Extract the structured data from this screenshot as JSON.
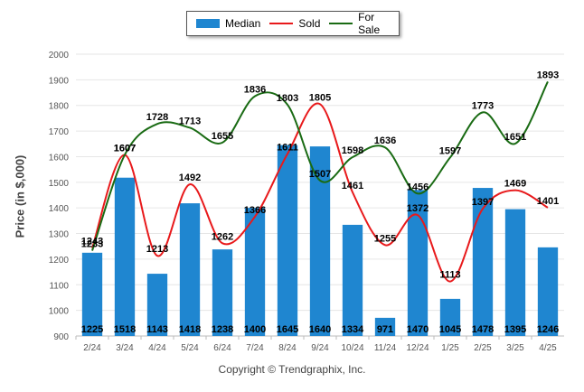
{
  "chart_data": {
    "type": "bar",
    "categories": [
      "2/24",
      "3/24",
      "4/24",
      "5/24",
      "6/24",
      "7/24",
      "8/24",
      "9/24",
      "10/24",
      "11/24",
      "12/24",
      "1/25",
      "2/25",
      "3/25",
      "4/25"
    ],
    "series": [
      {
        "name": "Median",
        "kind": "bar",
        "color": "#1f86d0",
        "values": [
          1225,
          1518,
          1143,
          1418,
          1238,
          1400,
          1645,
          1640,
          1334,
          971,
          1470,
          1045,
          1478,
          1395,
          1246
        ]
      },
      {
        "name": "Sold",
        "kind": "line",
        "color": "#e8191b",
        "values": [
          1243,
          1607,
          1213,
          1492,
          1262,
          1366,
          1611,
          1805,
          1461,
          1255,
          1372,
          1113,
          1397,
          1469,
          1401
        ]
      },
      {
        "name": "For Sale",
        "kind": "line",
        "color": "#1a6b14",
        "values": [
          1233,
          1607,
          1728,
          1713,
          1655,
          1836,
          1803,
          1507,
          1598,
          1636,
          1456,
          1597,
          1773,
          1651,
          1893
        ]
      }
    ],
    "ylabel": "Price (in $,000)",
    "ylim": [
      900,
      2000
    ],
    "yticks": [
      900,
      1000,
      1100,
      1200,
      1300,
      1400,
      1500,
      1600,
      1700,
      1800,
      1900,
      2000
    ],
    "grid": true,
    "legend_position": "top-center"
  },
  "footer": {
    "copyright": "Copyright © Trendgraphix, Inc."
  }
}
